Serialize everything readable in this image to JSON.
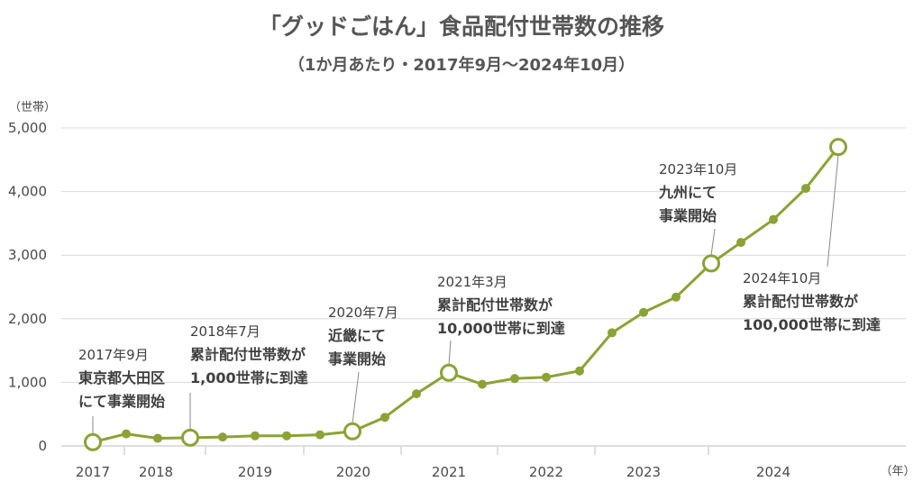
{
  "title": "「グッドごはん」食品配付世帯数の推移",
  "subtitle": "（1か月あたり・2017年9月〜2024年10月）",
  "colors": {
    "line": "#8aa334",
    "grid": "#d9d9d9",
    "marker_fill": "#ffffff"
  },
  "chart_data": {
    "type": "line",
    "title": "「グッドごはん」食品配付世帯数の推移",
    "subtitle": "（1か月あたり・2017年9月〜2024年10月）",
    "ylabel": "（世帯）",
    "xlabel": "（年）",
    "ylim": [
      0,
      5000
    ],
    "yticks": [
      0,
      1000,
      2000,
      3000,
      4000,
      5000
    ],
    "ytick_labels": [
      "0",
      "1,000",
      "2,000",
      "3,000",
      "4,000",
      "5,000"
    ],
    "xlim": [
      2017.0,
      2025.2
    ],
    "xticks": [
      2017,
      2018,
      2019,
      2020,
      2021,
      2022,
      2023,
      2024
    ],
    "xtick_labels": [
      "2017",
      "2018",
      "2019",
      "2020",
      "2021",
      "2022",
      "2023",
      "2024"
    ],
    "grid": true,
    "series": [
      {
        "points": [
          {
            "x": 2017.0,
            "y": 60,
            "highlight": true
          },
          {
            "x": 2017.33,
            "y": 190,
            "highlight": false
          },
          {
            "x": 2017.66,
            "y": 120,
            "highlight": false
          },
          {
            "x": 2018.0,
            "y": 130,
            "highlight": true
          },
          {
            "x": 2018.33,
            "y": 140,
            "highlight": false
          },
          {
            "x": 2018.66,
            "y": 160,
            "highlight": false
          },
          {
            "x": 2019.0,
            "y": 160,
            "highlight": false
          },
          {
            "x": 2019.33,
            "y": 175,
            "highlight": false
          },
          {
            "x": 2019.66,
            "y": 230,
            "highlight": true
          },
          {
            "x": 2020.0,
            "y": 450,
            "highlight": false
          },
          {
            "x": 2020.33,
            "y": 820,
            "highlight": false
          },
          {
            "x": 2020.66,
            "y": 1150,
            "highlight": true
          },
          {
            "x": 2021.0,
            "y": 970,
            "highlight": false
          },
          {
            "x": 2021.33,
            "y": 1060,
            "highlight": false
          },
          {
            "x": 2021.66,
            "y": 1080,
            "highlight": false
          },
          {
            "x": 2022.0,
            "y": 1180,
            "highlight": false
          },
          {
            "x": 2022.33,
            "y": 1780,
            "highlight": false
          },
          {
            "x": 2022.66,
            "y": 2100,
            "highlight": false
          },
          {
            "x": 2023.0,
            "y": 2340,
            "highlight": false
          },
          {
            "x": 2023.33,
            "y": 2870,
            "highlight": true
          },
          {
            "x": 2023.66,
            "y": 3200,
            "highlight": false
          },
          {
            "x": 2024.0,
            "y": 3560,
            "highlight": false
          },
          {
            "x": 2024.33,
            "y": 4050,
            "highlight": false
          },
          {
            "x": 2024.66,
            "y": 4700,
            "highlight": true
          }
        ]
      }
    ],
    "annotations": [
      {
        "point_index": 0,
        "lines": [
          "2017年9月",
          "東京都大田区",
          "にて事業開始"
        ]
      },
      {
        "point_index": 3,
        "lines": [
          "2018年7月",
          "累計配付世帯数が",
          "1,000世帯に到達"
        ]
      },
      {
        "point_index": 8,
        "lines": [
          "2020年7月",
          "近畿にて",
          "事業開始"
        ]
      },
      {
        "point_index": 11,
        "lines": [
          "2021年3月",
          "累計配付世帯数が",
          "10,000世帯に到達"
        ]
      },
      {
        "point_index": 19,
        "lines": [
          "2023年10月",
          "九州にて",
          "事業開始"
        ]
      },
      {
        "point_index": 23,
        "lines": [
          "2024年10月",
          "累計配付世帯数が",
          "100,000世帯に到達"
        ]
      }
    ]
  }
}
